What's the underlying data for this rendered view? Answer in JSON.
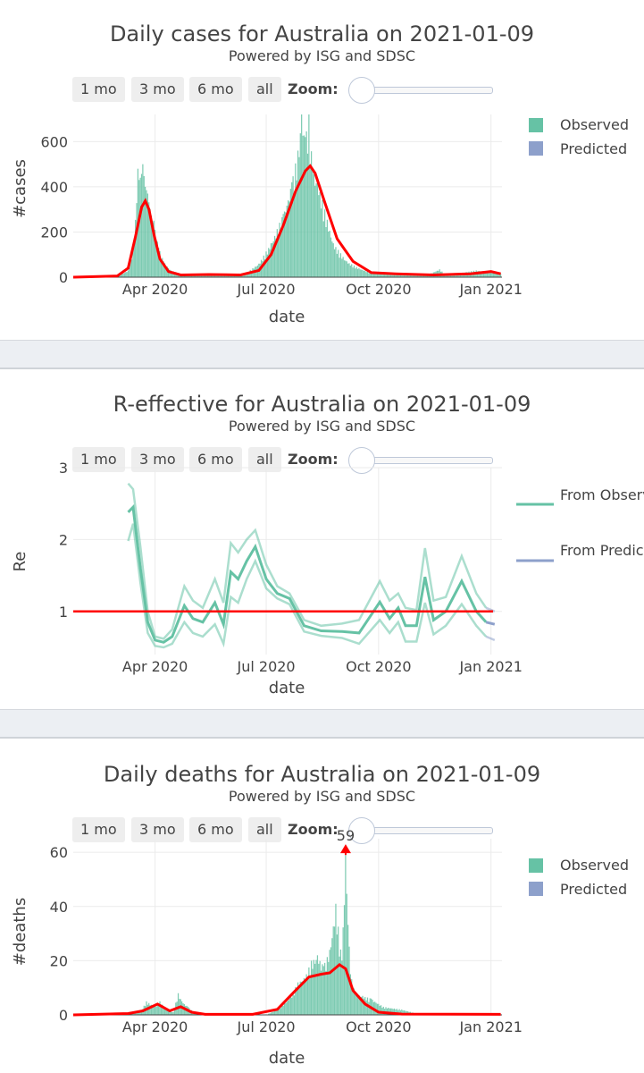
{
  "controls": {
    "buttons": [
      "1 mo",
      "3 mo",
      "6 mo",
      "all"
    ],
    "zoom_label": "Zoom:"
  },
  "colors": {
    "observed": "#66c2a5",
    "predicted": "#8da0cb",
    "trend": "#ff0000"
  },
  "chart_data": [
    {
      "type": "bar",
      "title": "Daily cases for Australia on 2021-01-09",
      "subtitle": "Powered by ISG and SDSC",
      "xlabel": "date",
      "ylabel": "#cases",
      "xlim": [
        "2020-01-25",
        "2021-01-10"
      ],
      "ylim": [
        0,
        720
      ],
      "yticks": [
        0,
        200,
        400,
        600
      ],
      "xticks": [
        {
          "date": "2020-04-01",
          "label": "Apr 2020"
        },
        {
          "date": "2020-07-01",
          "label": "Jul 2020"
        },
        {
          "date": "2020-10-01",
          "label": "Oct 2020"
        },
        {
          "date": "2021-01-01",
          "label": "Jan 2021"
        }
      ],
      "grid": true,
      "legend": {
        "position": "top-right",
        "entries": [
          "Observed",
          "Predicted"
        ]
      },
      "bar_peaks": [
        [
          "2020-01-25",
          0
        ],
        [
          "2020-03-01",
          2
        ],
        [
          "2020-03-10",
          30
        ],
        [
          "2020-03-15",
          150
        ],
        [
          "2020-03-18",
          480
        ],
        [
          "2020-03-20",
          440
        ],
        [
          "2020-03-22",
          500
        ],
        [
          "2020-03-24",
          400
        ],
        [
          "2020-03-26",
          370
        ],
        [
          "2020-03-28",
          300
        ],
        [
          "2020-03-31",
          250
        ],
        [
          "2020-04-04",
          130
        ],
        [
          "2020-04-08",
          70
        ],
        [
          "2020-04-14",
          30
        ],
        [
          "2020-04-22",
          15
        ],
        [
          "2020-05-10",
          12
        ],
        [
          "2020-06-01",
          12
        ],
        [
          "2020-06-15",
          20
        ],
        [
          "2020-06-25",
          60
        ],
        [
          "2020-07-05",
          150
        ],
        [
          "2020-07-15",
          280
        ],
        [
          "2020-07-22",
          420
        ],
        [
          "2020-07-27",
          560
        ],
        [
          "2020-07-30",
          720
        ],
        [
          "2020-08-02",
          620
        ],
        [
          "2020-08-05",
          720
        ],
        [
          "2020-08-08",
          480
        ],
        [
          "2020-08-12",
          430
        ],
        [
          "2020-08-18",
          300
        ],
        [
          "2020-08-25",
          150
        ],
        [
          "2020-09-05",
          70
        ],
        [
          "2020-09-15",
          40
        ],
        [
          "2020-09-25",
          20
        ],
        [
          "2020-10-15",
          15
        ],
        [
          "2020-11-10",
          10
        ],
        [
          "2020-11-20",
          35
        ],
        [
          "2020-11-25",
          10
        ],
        [
          "2020-12-20",
          30
        ],
        [
          "2021-01-01",
          25
        ],
        [
          "2021-01-09",
          15
        ]
      ],
      "trend": [
        [
          "2020-01-25",
          0
        ],
        [
          "2020-03-01",
          5
        ],
        [
          "2020-03-10",
          40
        ],
        [
          "2020-03-16",
          180
        ],
        [
          "2020-03-21",
          310
        ],
        [
          "2020-03-24",
          338
        ],
        [
          "2020-03-27",
          300
        ],
        [
          "2020-03-31",
          190
        ],
        [
          "2020-04-05",
          80
        ],
        [
          "2020-04-12",
          25
        ],
        [
          "2020-04-22",
          10
        ],
        [
          "2020-05-15",
          12
        ],
        [
          "2020-06-10",
          10
        ],
        [
          "2020-06-25",
          30
        ],
        [
          "2020-07-05",
          100
        ],
        [
          "2020-07-15",
          230
        ],
        [
          "2020-07-25",
          380
        ],
        [
          "2020-08-02",
          470
        ],
        [
          "2020-08-06",
          492
        ],
        [
          "2020-08-10",
          460
        ],
        [
          "2020-08-18",
          330
        ],
        [
          "2020-08-28",
          170
        ],
        [
          "2020-09-10",
          70
        ],
        [
          "2020-09-25",
          20
        ],
        [
          "2020-10-15",
          15
        ],
        [
          "2020-11-15",
          10
        ],
        [
          "2020-12-15",
          15
        ],
        [
          "2021-01-01",
          25
        ],
        [
          "2021-01-09",
          15
        ]
      ]
    },
    {
      "type": "line",
      "title": "R-effective for Australia on 2021-01-09",
      "subtitle": "Powered by ISG and SDSC",
      "xlabel": "date",
      "ylabel": "Re",
      "xlim": [
        "2020-01-25",
        "2021-01-10"
      ],
      "ylim": [
        0.4,
        3.0
      ],
      "yticks": [
        1,
        2,
        3
      ],
      "xticks": [
        {
          "date": "2020-04-01",
          "label": "Apr 2020"
        },
        {
          "date": "2020-07-01",
          "label": "Jul 2020"
        },
        {
          "date": "2020-10-01",
          "label": "Oct 2020"
        },
        {
          "date": "2021-01-01",
          "label": "Jan 2021"
        }
      ],
      "grid": true,
      "threshold": 1,
      "legend": {
        "position": "top-right",
        "entries": [
          "From Observed",
          "From Predicted"
        ]
      },
      "series": [
        {
          "name": "From Observed",
          "median": [
            [
              "2020-03-10",
              2.38
            ],
            [
              "2020-03-14",
              2.45
            ],
            [
              "2020-03-20",
              1.6
            ],
            [
              "2020-03-26",
              0.85
            ],
            [
              "2020-04-01",
              0.6
            ],
            [
              "2020-04-08",
              0.57
            ],
            [
              "2020-04-15",
              0.65
            ],
            [
              "2020-04-25",
              1.08
            ],
            [
              "2020-05-02",
              0.9
            ],
            [
              "2020-05-10",
              0.85
            ],
            [
              "2020-05-20",
              1.12
            ],
            [
              "2020-05-27",
              0.82
            ],
            [
              "2020-06-02",
              1.55
            ],
            [
              "2020-06-08",
              1.45
            ],
            [
              "2020-06-15",
              1.7
            ],
            [
              "2020-06-22",
              1.9
            ],
            [
              "2020-07-01",
              1.45
            ],
            [
              "2020-07-10",
              1.25
            ],
            [
              "2020-07-20",
              1.18
            ],
            [
              "2020-08-01",
              0.8
            ],
            [
              "2020-08-15",
              0.73
            ],
            [
              "2020-09-01",
              0.72
            ],
            [
              "2020-09-15",
              0.7
            ],
            [
              "2020-10-02",
              1.13
            ],
            [
              "2020-10-10",
              0.9
            ],
            [
              "2020-10-17",
              1.05
            ],
            [
              "2020-10-23",
              0.8
            ],
            [
              "2020-11-01",
              0.8
            ],
            [
              "2020-11-08",
              1.48
            ],
            [
              "2020-11-15",
              0.88
            ],
            [
              "2020-11-25",
              1.0
            ],
            [
              "2020-12-08",
              1.42
            ],
            [
              "2020-12-20",
              1.0
            ],
            [
              "2020-12-28",
              0.85
            ]
          ],
          "upper": [
            [
              "2020-03-10",
              2.78
            ],
            [
              "2020-03-14",
              2.7
            ],
            [
              "2020-03-20",
              1.9
            ],
            [
              "2020-03-26",
              1.0
            ],
            [
              "2020-04-01",
              0.65
            ],
            [
              "2020-04-08",
              0.62
            ],
            [
              "2020-04-15",
              0.75
            ],
            [
              "2020-04-25",
              1.35
            ],
            [
              "2020-05-02",
              1.15
            ],
            [
              "2020-05-10",
              1.05
            ],
            [
              "2020-05-20",
              1.45
            ],
            [
              "2020-05-27",
              1.12
            ],
            [
              "2020-06-02",
              1.95
            ],
            [
              "2020-06-08",
              1.82
            ],
            [
              "2020-06-15",
              2.0
            ],
            [
              "2020-06-22",
              2.13
            ],
            [
              "2020-07-01",
              1.65
            ],
            [
              "2020-07-10",
              1.35
            ],
            [
              "2020-07-20",
              1.25
            ],
            [
              "2020-08-01",
              0.88
            ],
            [
              "2020-08-15",
              0.8
            ],
            [
              "2020-09-01",
              0.83
            ],
            [
              "2020-09-15",
              0.88
            ],
            [
              "2020-10-02",
              1.42
            ],
            [
              "2020-10-10",
              1.15
            ],
            [
              "2020-10-17",
              1.25
            ],
            [
              "2020-10-23",
              1.05
            ],
            [
              "2020-11-01",
              1.02
            ],
            [
              "2020-11-08",
              1.88
            ],
            [
              "2020-11-15",
              1.15
            ],
            [
              "2020-11-25",
              1.2
            ],
            [
              "2020-12-08",
              1.77
            ],
            [
              "2020-12-20",
              1.25
            ],
            [
              "2020-12-28",
              1.05
            ]
          ],
          "lower": [
            [
              "2020-03-10",
              1.98
            ],
            [
              "2020-03-14",
              2.22
            ],
            [
              "2020-03-20",
              1.4
            ],
            [
              "2020-03-26",
              0.7
            ],
            [
              "2020-04-01",
              0.52
            ],
            [
              "2020-04-08",
              0.5
            ],
            [
              "2020-04-15",
              0.55
            ],
            [
              "2020-04-25",
              0.85
            ],
            [
              "2020-05-02",
              0.7
            ],
            [
              "2020-05-10",
              0.65
            ],
            [
              "2020-05-20",
              0.82
            ],
            [
              "2020-05-27",
              0.55
            ],
            [
              "2020-06-02",
              1.2
            ],
            [
              "2020-06-08",
              1.12
            ],
            [
              "2020-06-15",
              1.45
            ],
            [
              "2020-06-22",
              1.7
            ],
            [
              "2020-07-01",
              1.32
            ],
            [
              "2020-07-10",
              1.18
            ],
            [
              "2020-07-20",
              1.1
            ],
            [
              "2020-08-01",
              0.72
            ],
            [
              "2020-08-15",
              0.66
            ],
            [
              "2020-09-01",
              0.63
            ],
            [
              "2020-09-15",
              0.55
            ],
            [
              "2020-10-02",
              0.88
            ],
            [
              "2020-10-10",
              0.7
            ],
            [
              "2020-10-17",
              0.85
            ],
            [
              "2020-10-23",
              0.58
            ],
            [
              "2020-11-01",
              0.58
            ],
            [
              "2020-11-08",
              1.12
            ],
            [
              "2020-11-15",
              0.68
            ],
            [
              "2020-11-25",
              0.8
            ],
            [
              "2020-12-08",
              1.1
            ],
            [
              "2020-12-20",
              0.8
            ],
            [
              "2020-12-28",
              0.65
            ]
          ]
        },
        {
          "name": "From Predicted",
          "median": [
            [
              "2020-12-28",
              0.85
            ],
            [
              "2021-01-04",
              0.82
            ]
          ],
          "upper": [
            [
              "2020-12-28",
              1.05
            ],
            [
              "2021-01-04",
              1.0
            ]
          ],
          "lower": [
            [
              "2020-12-28",
              0.65
            ],
            [
              "2021-01-04",
              0.6
            ]
          ]
        }
      ]
    },
    {
      "type": "bar",
      "title": "Daily deaths for Australia on 2021-01-09",
      "subtitle": "Powered by ISG and SDSC",
      "xlabel": "date",
      "ylabel": "#deaths",
      "xlim": [
        "2020-01-25",
        "2021-01-10"
      ],
      "ylim": [
        0,
        65
      ],
      "yticks": [
        0,
        20,
        40,
        60
      ],
      "xticks": [
        {
          "date": "2020-04-01",
          "label": "Apr 2020"
        },
        {
          "date": "2020-07-01",
          "label": "Jul 2020"
        },
        {
          "date": "2020-10-01",
          "label": "Oct 2020"
        },
        {
          "date": "2021-01-01",
          "label": "Jan 2021"
        }
      ],
      "grid": true,
      "legend": {
        "position": "top-right",
        "entries": [
          "Observed",
          "Predicted"
        ]
      },
      "annotation": {
        "date": "2020-09-04",
        "value": 59,
        "text": "59"
      },
      "bar_peaks": [
        [
          "2020-01-25",
          0
        ],
        [
          "2020-03-05",
          0
        ],
        [
          "2020-03-20",
          1
        ],
        [
          "2020-03-25",
          5
        ],
        [
          "2020-04-01",
          3
        ],
        [
          "2020-04-05",
          5
        ],
        [
          "2020-04-10",
          2
        ],
        [
          "2020-04-16",
          1
        ],
        [
          "2020-04-20",
          8
        ],
        [
          "2020-04-23",
          5
        ],
        [
          "2020-04-28",
          3
        ],
        [
          "2020-05-05",
          0
        ],
        [
          "2020-07-01",
          0
        ],
        [
          "2020-07-10",
          2
        ],
        [
          "2020-07-20",
          6
        ],
        [
          "2020-07-27",
          12
        ],
        [
          "2020-08-03",
          15
        ],
        [
          "2020-08-07",
          20
        ],
        [
          "2020-08-12",
          22
        ],
        [
          "2020-08-17",
          18
        ],
        [
          "2020-08-22",
          24
        ],
        [
          "2020-08-27",
          41
        ],
        [
          "2020-09-01",
          20
        ],
        [
          "2020-09-04",
          59
        ],
        [
          "2020-09-08",
          15
        ],
        [
          "2020-09-12",
          8
        ],
        [
          "2020-09-18",
          7
        ],
        [
          "2020-09-25",
          6
        ],
        [
          "2020-10-05",
          3
        ],
        [
          "2020-10-20",
          2
        ],
        [
          "2020-11-05",
          0
        ],
        [
          "2021-01-09",
          0
        ]
      ],
      "trend": [
        [
          "2020-01-25",
          0
        ],
        [
          "2020-03-10",
          0.5
        ],
        [
          "2020-03-22",
          1.5
        ],
        [
          "2020-04-03",
          4
        ],
        [
          "2020-04-13",
          1.5
        ],
        [
          "2020-04-22",
          3
        ],
        [
          "2020-05-01",
          1
        ],
        [
          "2020-05-12",
          0.2
        ],
        [
          "2020-06-20",
          0.2
        ],
        [
          "2020-07-10",
          2
        ],
        [
          "2020-07-25",
          9
        ],
        [
          "2020-08-05",
          14
        ],
        [
          "2020-08-15",
          15
        ],
        [
          "2020-08-22",
          15.5
        ],
        [
          "2020-08-30",
          18.5
        ],
        [
          "2020-09-04",
          17
        ],
        [
          "2020-09-10",
          9
        ],
        [
          "2020-09-20",
          4
        ],
        [
          "2020-10-01",
          1
        ],
        [
          "2020-10-20",
          0.3
        ],
        [
          "2021-01-09",
          0.2
        ]
      ]
    }
  ]
}
